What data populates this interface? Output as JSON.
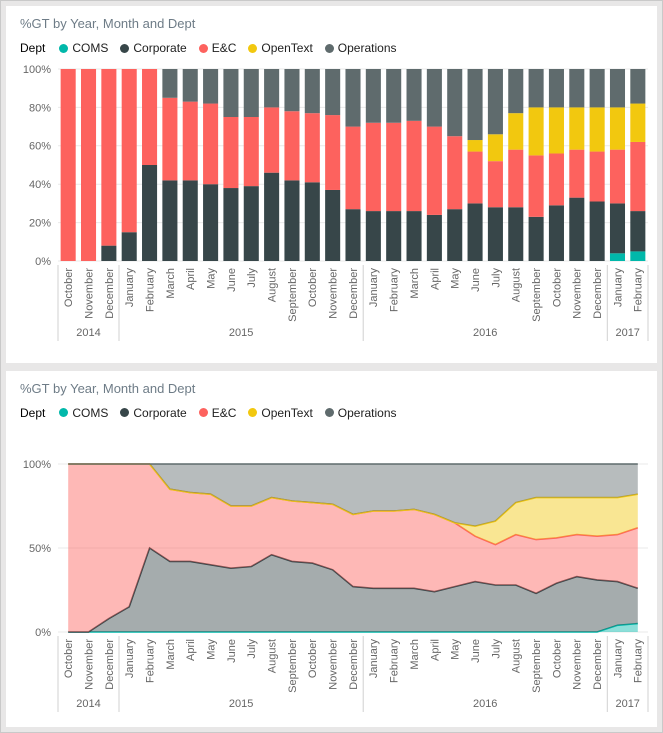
{
  "charts": [
    {
      "title": "%GT by Year, Month and Dept",
      "legend": {
        "title": "Dept",
        "items": [
          {
            "label": "COMS",
            "color": "#01B8AA"
          },
          {
            "label": "Corporate",
            "color": "#374649"
          },
          {
            "label": "E&C",
            "color": "#FD625E"
          },
          {
            "label": "OpenText",
            "color": "#F2C80F"
          },
          {
            "label": "Operations",
            "color": "#5F6B6D"
          }
        ]
      },
      "y_axis_ticks": [
        "0%",
        "20%",
        "40%",
        "60%",
        "80%",
        "100%"
      ]
    },
    {
      "title": "%GT by Year, Month and Dept",
      "legend": {
        "title": "Dept",
        "items": [
          {
            "label": "COMS",
            "color": "#01B8AA"
          },
          {
            "label": "Corporate",
            "color": "#374649"
          },
          {
            "label": "E&C",
            "color": "#FD625E"
          },
          {
            "label": "OpenText",
            "color": "#F2C80F"
          },
          {
            "label": "Operations",
            "color": "#5F6B6D"
          }
        ]
      },
      "y_axis_ticks": [
        "0%",
        "50%",
        "100%"
      ]
    }
  ],
  "chart_data": [
    {
      "type": "bar",
      "title": "%GT by Year, Month and Dept",
      "stacked": "100%",
      "value_format": "percent",
      "ylim": [
        0,
        100
      ],
      "yticks": [
        0,
        20,
        40,
        60,
        80,
        100
      ],
      "legend_position": "top",
      "categories": [
        "October",
        "November",
        "December",
        "January",
        "February",
        "March",
        "April",
        "May",
        "June",
        "July",
        "August",
        "September",
        "October",
        "November",
        "December",
        "January",
        "February",
        "March",
        "April",
        "May",
        "June",
        "July",
        "August",
        "September",
        "October",
        "November",
        "December",
        "January",
        "February"
      ],
      "year_groups": [
        {
          "label": "2014",
          "start": 0,
          "count": 3
        },
        {
          "label": "2015",
          "start": 3,
          "count": 12
        },
        {
          "label": "2016",
          "start": 15,
          "count": 12
        },
        {
          "label": "2017",
          "start": 27,
          "count": 2
        }
      ],
      "series": [
        {
          "name": "COMS",
          "color": "#01B8AA",
          "values": [
            0,
            0,
            0,
            0,
            0,
            0,
            0,
            0,
            0,
            0,
            0,
            0,
            0,
            0,
            0,
            0,
            0,
            0,
            0,
            0,
            0,
            0,
            0,
            0,
            0,
            0,
            0,
            4,
            5
          ]
        },
        {
          "name": "Corporate",
          "color": "#374649",
          "values": [
            0,
            0,
            8,
            15,
            50,
            42,
            42,
            40,
            38,
            39,
            46,
            42,
            41,
            37,
            27,
            26,
            26,
            26,
            24,
            27,
            30,
            28,
            28,
            23,
            29,
            33,
            31,
            26,
            21
          ]
        },
        {
          "name": "E&C",
          "color": "#FD625E",
          "values": [
            100,
            100,
            92,
            85,
            50,
            43,
            41,
            42,
            37,
            36,
            34,
            36,
            36,
            39,
            43,
            46,
            46,
            47,
            46,
            38,
            27,
            24,
            30,
            32,
            27,
            25,
            26,
            28,
            36
          ]
        },
        {
          "name": "OpenText",
          "color": "#F2C80F",
          "values": [
            0,
            0,
            0,
            0,
            0,
            0,
            0,
            0,
            0,
            0,
            0,
            0,
            0,
            0,
            0,
            0,
            0,
            0,
            0,
            0,
            6,
            14,
            19,
            25,
            24,
            22,
            23,
            22,
            20
          ]
        },
        {
          "name": "Operations",
          "color": "#5F6B6D",
          "values": [
            0,
            0,
            0,
            0,
            0,
            15,
            17,
            18,
            25,
            25,
            20,
            22,
            23,
            24,
            30,
            28,
            28,
            27,
            30,
            35,
            37,
            34,
            23,
            20,
            20,
            20,
            20,
            20,
            18
          ]
        }
      ]
    },
    {
      "type": "area",
      "title": "%GT by Year, Month and Dept",
      "stacked": "100%",
      "value_format": "percent",
      "ylim": [
        0,
        100
      ],
      "yticks": [
        0,
        50,
        100
      ],
      "legend_position": "top",
      "categories": [
        "October",
        "November",
        "December",
        "January",
        "February",
        "March",
        "April",
        "May",
        "June",
        "July",
        "August",
        "September",
        "October",
        "November",
        "December",
        "January",
        "February",
        "March",
        "April",
        "May",
        "June",
        "July",
        "August",
        "September",
        "October",
        "November",
        "December",
        "January",
        "February"
      ],
      "year_groups": [
        {
          "label": "2014",
          "start": 0,
          "count": 3
        },
        {
          "label": "2015",
          "start": 3,
          "count": 12
        },
        {
          "label": "2016",
          "start": 15,
          "count": 12
        },
        {
          "label": "2017",
          "start": 27,
          "count": 2
        }
      ],
      "series": [
        {
          "name": "COMS",
          "color": "#01B8AA",
          "values": [
            0,
            0,
            0,
            0,
            0,
            0,
            0,
            0,
            0,
            0,
            0,
            0,
            0,
            0,
            0,
            0,
            0,
            0,
            0,
            0,
            0,
            0,
            0,
            0,
            0,
            0,
            0,
            4,
            5
          ]
        },
        {
          "name": "Corporate",
          "color": "#374649",
          "values": [
            0,
            0,
            8,
            15,
            50,
            42,
            42,
            40,
            38,
            39,
            46,
            42,
            41,
            37,
            27,
            26,
            26,
            26,
            24,
            27,
            30,
            28,
            28,
            23,
            29,
            33,
            31,
            26,
            21
          ]
        },
        {
          "name": "E&C",
          "color": "#FD625E",
          "values": [
            100,
            100,
            92,
            85,
            50,
            43,
            41,
            42,
            37,
            36,
            34,
            36,
            36,
            39,
            43,
            46,
            46,
            47,
            46,
            38,
            27,
            24,
            30,
            32,
            27,
            25,
            26,
            28,
            36
          ]
        },
        {
          "name": "OpenText",
          "color": "#F2C80F",
          "values": [
            0,
            0,
            0,
            0,
            0,
            0,
            0,
            0,
            0,
            0,
            0,
            0,
            0,
            0,
            0,
            0,
            0,
            0,
            0,
            0,
            6,
            14,
            19,
            25,
            24,
            22,
            23,
            22,
            20
          ]
        },
        {
          "name": "Operations",
          "color": "#5F6B6D",
          "values": [
            0,
            0,
            0,
            0,
            0,
            15,
            17,
            18,
            25,
            25,
            20,
            22,
            23,
            24,
            30,
            28,
            28,
            27,
            30,
            35,
            37,
            34,
            23,
            20,
            20,
            20,
            20,
            20,
            18
          ]
        }
      ]
    }
  ]
}
